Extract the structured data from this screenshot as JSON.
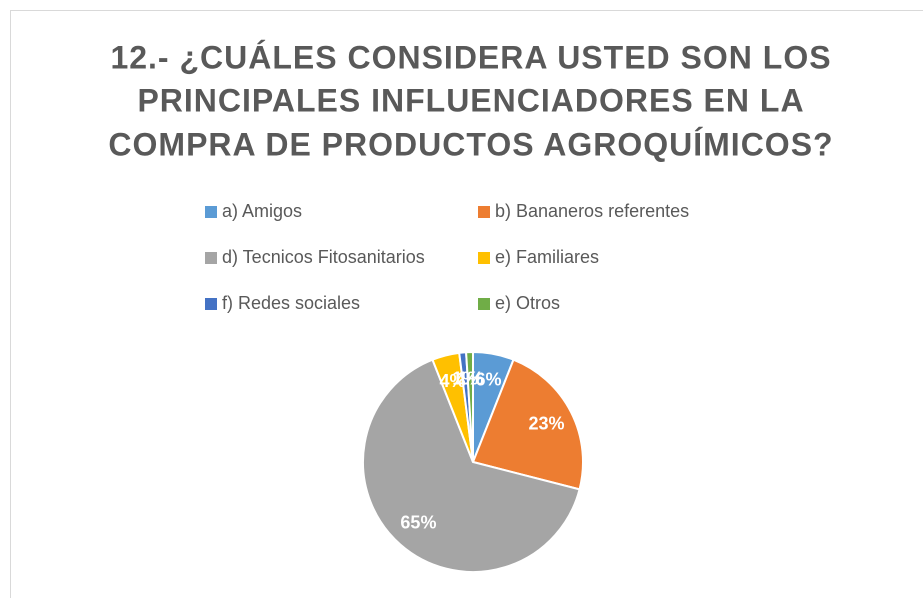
{
  "chart_data": {
    "type": "pie",
    "title": [
      "12.- ¿CUÁLES CONSIDERA USTED SON LOS",
      "PRINCIPALES INFLUENCIADORES EN LA",
      "COMPRA DE PRODUCTOS AGROQUÍMICOS?"
    ],
    "categories": [
      "a) Amigos",
      "b) Bananeros referentes",
      "d) Tecnicos Fitosanitarios",
      "e) Familiares",
      "f) Redes sociales",
      "e) Otros"
    ],
    "values": [
      6,
      23,
      65,
      4,
      1,
      1
    ],
    "value_labels": [
      "6%",
      "23%",
      "65%",
      "4%",
      "1%",
      "1%"
    ],
    "colors": [
      "#5b9bd5",
      "#ed7d31",
      "#a5a5a5",
      "#ffc000",
      "#4472c4",
      "#70ad47"
    ],
    "legend": "top"
  }
}
